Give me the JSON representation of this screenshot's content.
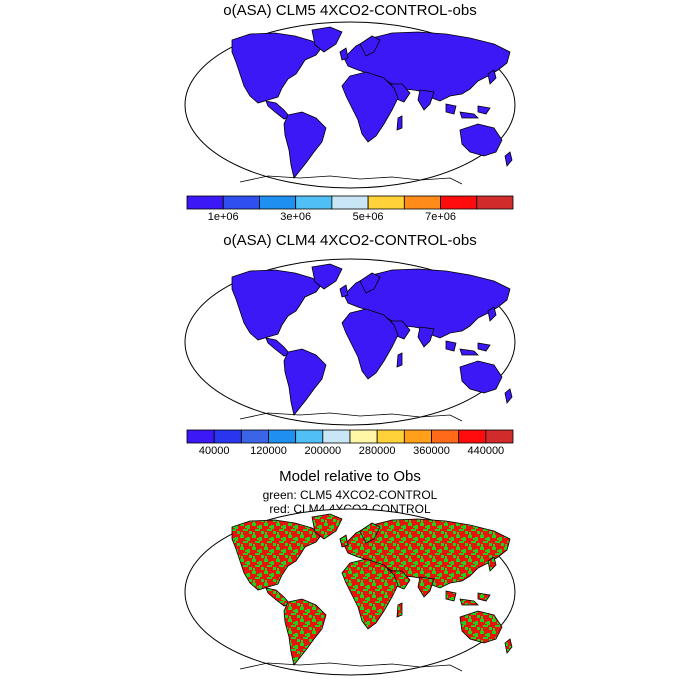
{
  "colors": {
    "land_single": "#3b18f5",
    "model_green": "#22d11a",
    "model_red": "#e8140c",
    "coast": "#000000"
  },
  "panels": [
    {
      "title": "o(ASA) CLM5 4XCO2-CONTROL-obs",
      "colorbar": {
        "colors": [
          "#3b18f5",
          "#2f4fee",
          "#1f8ff0",
          "#4fbff5",
          "#c8e6f5",
          "#ffd23a",
          "#ff8c1a",
          "#ff0d0d",
          "#d22b2b"
        ],
        "tick_labels": [
          "1e+06",
          "3e+06",
          "5e+06",
          "7e+06"
        ],
        "tick_after_box": [
          1,
          3,
          5,
          7
        ]
      }
    },
    {
      "title": "o(ASA) CLM4 4XCO2-CONTROL-obs",
      "colorbar": {
        "colors": [
          "#3b18f5",
          "#2a35f0",
          "#3c64e6",
          "#1f8ff0",
          "#4fbff5",
          "#c8e6f5",
          "#fff6a6",
          "#ffd23a",
          "#ff9f1a",
          "#ff6a1a",
          "#ff0d0d",
          "#d22b2b"
        ],
        "tick_labels": [
          "40000",
          "120000",
          "200000",
          "280000",
          "360000",
          "440000"
        ],
        "tick_after_box": [
          1,
          3,
          5,
          7,
          9,
          11
        ]
      }
    },
    {
      "title": "Model relative to Obs",
      "subtitles": [
        "green: CLM5 4XCO2-CONTROL",
        "red: CLM4 4XCO2-CONTROL"
      ]
    }
  ]
}
